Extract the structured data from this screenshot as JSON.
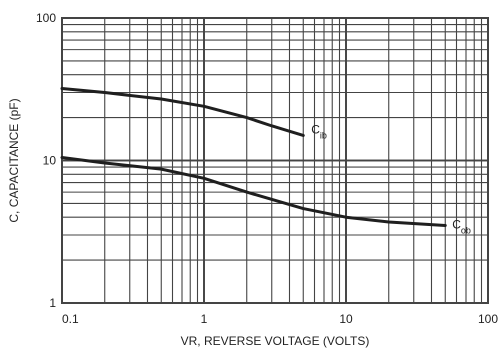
{
  "chart_data": {
    "type": "line",
    "xlabel": "VR, REVERSE VOLTAGE (VOLTS)",
    "ylabel": "C, CAPACITANCE (pF)",
    "x_scale": "log",
    "y_scale": "log",
    "xlim": [
      0.1,
      100
    ],
    "ylim": [
      1,
      100
    ],
    "x_ticks": [
      "0.1",
      "1",
      "10",
      "100"
    ],
    "y_ticks": [
      "1",
      "10",
      "100"
    ],
    "grid": true,
    "series": [
      {
        "name": "Cib",
        "x": [
          0.1,
          0.2,
          0.5,
          1,
          2,
          3,
          5
        ],
        "y": [
          32,
          30,
          27,
          24,
          20,
          17.5,
          15
        ]
      },
      {
        "name": "Cob",
        "x": [
          0.1,
          0.2,
          0.5,
          1,
          2,
          5,
          10,
          20,
          50
        ],
        "y": [
          10.5,
          9.6,
          8.7,
          7.5,
          6.0,
          4.6,
          4.0,
          3.7,
          3.5
        ]
      }
    ],
    "colors": {
      "line": "#1f1f1f",
      "grid": "#444444",
      "text": "#222222"
    }
  }
}
